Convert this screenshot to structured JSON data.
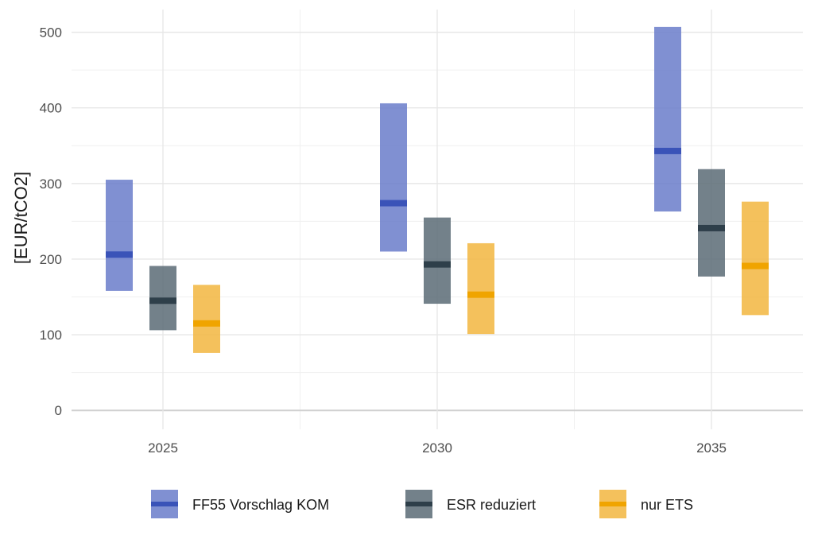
{
  "chart_data": {
    "type": "range-bar",
    "title": "",
    "xlabel": "",
    "ylabel": "[EUR/tCO2]",
    "ylim": [
      -25,
      530
    ],
    "y_ticks": [
      0,
      100,
      200,
      300,
      400,
      500
    ],
    "categories": [
      "2025",
      "2030",
      "2035"
    ],
    "grid": true,
    "legend_position": "bottom",
    "series": [
      {
        "name": "FF55 Vorschlag KOM",
        "color": "#3a53b8",
        "fill_color": "#6a7cca",
        "low": [
          158,
          210,
          263
        ],
        "high": [
          305,
          406,
          507
        ],
        "mid": [
          206,
          274,
          343
        ]
      },
      {
        "name": "ESR reduziert",
        "color": "#2e3f4a",
        "fill_color": "#5b6b75",
        "low": [
          106,
          141,
          177
        ],
        "high": [
          191,
          255,
          319
        ],
        "mid": [
          145,
          193,
          241
        ]
      },
      {
        "name": "nur ETS",
        "color": "#f0a400",
        "fill_color": "#f2b640",
        "low": [
          76,
          101,
          126
        ],
        "high": [
          166,
          221,
          276
        ],
        "mid": [
          115,
          153,
          191
        ]
      }
    ]
  }
}
